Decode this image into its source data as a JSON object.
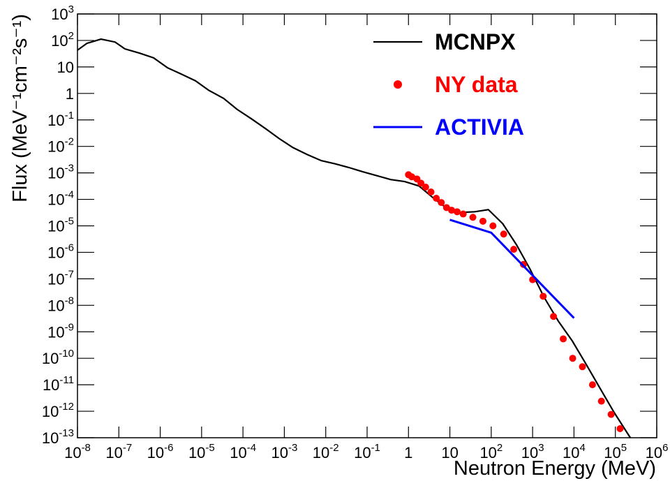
{
  "chart_data": {
    "type": "line",
    "x_label": "Neutron Energy (MeV)",
    "y_label": "Flux (MeV⁻¹cm⁻²s⁻¹)",
    "xscale": "log",
    "yscale": "log",
    "xlim": [
      1e-08,
      1000000.0
    ],
    "ylim": [
      1e-13,
      1000.0
    ],
    "xticks": [
      {
        "value": 1e-08,
        "label": "10",
        "exponent": "-8"
      },
      {
        "value": 1e-07,
        "label": "10",
        "exponent": "-7"
      },
      {
        "value": 1e-06,
        "label": "10",
        "exponent": "-6"
      },
      {
        "value": 1e-05,
        "label": "10",
        "exponent": "-5"
      },
      {
        "value": 0.0001,
        "label": "10",
        "exponent": "-4"
      },
      {
        "value": 0.001,
        "label": "10",
        "exponent": "-3"
      },
      {
        "value": 0.01,
        "label": "10",
        "exponent": "-2"
      },
      {
        "value": 0.1,
        "label": "10",
        "exponent": "-1"
      },
      1,
      10,
      {
        "value": 100.0,
        "label": "10",
        "exponent": "2"
      },
      {
        "value": 1000.0,
        "label": "10",
        "exponent": "3"
      },
      {
        "value": 10000.0,
        "label": "10",
        "exponent": "4"
      },
      {
        "value": 100000.0,
        "label": "10",
        "exponent": "5"
      },
      {
        "value": 1000000.0,
        "label": "10",
        "exponent": "6"
      }
    ],
    "yticks": [
      {
        "value": 1e-13,
        "label": "10",
        "exponent": "-13"
      },
      {
        "value": 1e-12,
        "label": "10",
        "exponent": "-12"
      },
      {
        "value": 1e-11,
        "label": "10",
        "exponent": "-11"
      },
      {
        "value": 1e-10,
        "label": "10",
        "exponent": "-10"
      },
      {
        "value": 1e-09,
        "label": "10",
        "exponent": "-9"
      },
      {
        "value": 1e-08,
        "label": "10",
        "exponent": "-8"
      },
      {
        "value": 1e-07,
        "label": "10",
        "exponent": "-7"
      },
      {
        "value": 1e-06,
        "label": "10",
        "exponent": "-6"
      },
      {
        "value": 1e-05,
        "label": "10",
        "exponent": "-5"
      },
      {
        "value": 0.0001,
        "label": "10",
        "exponent": "-4"
      },
      {
        "value": 0.001,
        "label": "10",
        "exponent": "-3"
      },
      {
        "value": 0.01,
        "label": "10",
        "exponent": "-2"
      },
      {
        "value": 0.1,
        "label": "10",
        "exponent": "-1"
      },
      1,
      10,
      {
        "value": 100.0,
        "label": "10",
        "exponent": "2"
      },
      {
        "value": 1000.0,
        "label": "10",
        "exponent": "3"
      }
    ],
    "legend_position": "top-right",
    "series": [
      {
        "name": "MCNPX",
        "type": "line",
        "color": "#000000",
        "x": [
          1e-08,
          1.7e-08,
          3.7e-08,
          8.1e-08,
          1.4e-07,
          3.2e-07,
          6.9e-07,
          1.5e-06,
          3.2e-06,
          7.1e-06,
          1.5e-05,
          3.4e-05,
          7.2e-05,
          0.00016,
          0.00035,
          0.00074,
          0.0016,
          0.0035,
          0.0078,
          0.017,
          0.036,
          0.079,
          0.17,
          0.37,
          0.81,
          1.8,
          3.8,
          8.3,
          18,
          40,
          85,
          190,
          410,
          870,
          1900,
          4200,
          9100,
          19000,
          43000,
          93000,
          230000
        ],
        "values": [
          43,
          78,
          112,
          87,
          48,
          33,
          22,
          9.3,
          5.4,
          3.0,
          1.3,
          0.65,
          0.25,
          0.11,
          0.047,
          0.02,
          0.0091,
          0.005,
          0.0029,
          0.0022,
          0.0016,
          0.0011,
          0.00079,
          0.00056,
          0.00047,
          0.00032,
          0.00012,
          4.7e-05,
          3.2e-05,
          3.4e-05,
          4.1e-05,
          1.2e-05,
          1.9e-06,
          2.3e-07,
          2e-08,
          2.5e-09,
          4.5e-10,
          6.5e-11,
          7.2e-12,
          9.1e-13,
          1e-13
        ]
      },
      {
        "name": "NY data",
        "type": "scatter",
        "color": "#ff0000",
        "x": [
          1,
          1.2,
          1.6,
          2.0,
          2.6,
          3.5,
          4.7,
          6.2,
          8.3,
          11,
          15,
          21,
          36,
          63,
          110,
          200,
          350,
          600,
          1000,
          1800,
          3200,
          5500,
          9300,
          16000,
          28000,
          46000,
          79000,
          130000
        ],
        "values": [
          0.00085,
          0.00071,
          0.00059,
          0.00041,
          0.00029,
          0.00019,
          0.00011,
          7.6e-05,
          4.9e-05,
          3.9e-05,
          3.4e-05,
          2.8e-05,
          2.1e-05,
          1.5e-05,
          1e-05,
          4.9e-06,
          1.3e-06,
          3.5e-07,
          9.3e-08,
          2.2e-08,
          3.8e-09,
          5.4e-10,
          1e-10,
          4.8e-11,
          1e-11,
          2.4e-12,
          7.6e-13,
          2.2e-13
        ]
      },
      {
        "name": "ACTIVIA",
        "type": "line",
        "color": "#0000ff",
        "x": [
          10,
          100,
          10000
        ],
        "values": [
          1.7e-05,
          5.5e-06,
          3.3e-09
        ]
      }
    ]
  }
}
